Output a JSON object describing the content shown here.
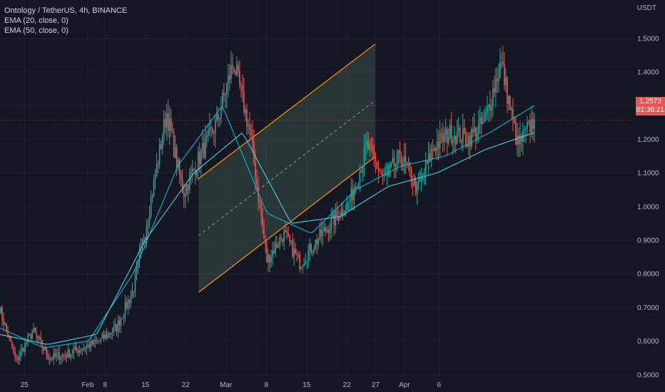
{
  "legend": {
    "symbol": "Ontology / TetherUS, 4h, BINANCE",
    "ema20": "EMA (20, close, 0)",
    "ema50": "EMA (50, close, 0)"
  },
  "colors": {
    "background": "#131722",
    "grid": "#1e222d",
    "up": "#26a69a",
    "down": "#ef5350",
    "ema20": "#00bcd4",
    "ema50": "#4dd0e1",
    "channel_line": "#ff9800",
    "channel_fill": "#a5d6a7",
    "price_line": "#ef5350"
  },
  "price_badge": {
    "price": "1.2573",
    "countdown": "01:36:21"
  },
  "chart_data": {
    "type": "candlestick",
    "title": "Ontology / TetherUS, 4h, BINANCE",
    "unit": "USDT",
    "yticks": [
      "1.5000",
      "1.4000",
      "1.3000",
      "1.2000",
      "1.1000",
      "1.0000",
      "0.9000",
      "0.8000",
      "0.7000",
      "0.6000",
      "0.5000"
    ],
    "ylim": [
      0.45,
      1.55
    ],
    "xticks": [
      "25",
      "Feb",
      "8",
      "15",
      "22",
      "Mar",
      "8",
      "15",
      "22",
      "27",
      "Apr",
      "6"
    ],
    "last_price": 1.2573,
    "grid": true,
    "series": [
      {
        "name": "EMA (20, close, 0)",
        "type": "line"
      },
      {
        "name": "EMA (50, close, 0)",
        "type": "line"
      }
    ],
    "anchors": [
      [
        0.7,
        0.62
      ],
      [
        0.54,
        0.58
      ],
      [
        0.63,
        0.62
      ],
      [
        0.55,
        0.58
      ],
      [
        0.56,
        0.57
      ],
      [
        0.58,
        0.58
      ],
      [
        0.6,
        0.61
      ],
      [
        0.64,
        0.64
      ],
      [
        0.75,
        0.73
      ],
      [
        1.0,
        1.02
      ],
      [
        1.28,
        1.32
      ],
      [
        1.04,
        1.08
      ],
      [
        1.15,
        1.2
      ],
      [
        1.25,
        1.28
      ],
      [
        1.43,
        1.48
      ],
      [
        1.22,
        1.26
      ],
      [
        0.84,
        0.92
      ],
      [
        0.92,
        0.94
      ],
      [
        0.83,
        0.82
      ],
      [
        0.9,
        0.92
      ],
      [
        0.96,
        0.96
      ],
      [
        1.02,
        1.05
      ],
      [
        1.18,
        1.21
      ],
      [
        1.08,
        1.12
      ],
      [
        1.15,
        1.16
      ],
      [
        1.05,
        1.03
      ],
      [
        1.18,
        1.2
      ],
      [
        1.22,
        1.24
      ],
      [
        1.2,
        1.21
      ],
      [
        1.25,
        1.27
      ],
      [
        1.43,
        1.45
      ],
      [
        1.18,
        1.16
      ],
      [
        1.26,
        1.257
      ]
    ],
    "ema20_anchors": [
      [
        0.64,
        0.62
      ],
      [
        0.58,
        0.6
      ],
      [
        0.6,
        0.64
      ],
      [
        0.8,
        1.0
      ],
      [
        1.12,
        1.15
      ],
      [
        1.3,
        1.1
      ],
      [
        0.98,
        0.88
      ],
      [
        0.92,
        0.98
      ],
      [
        1.05,
        1.1
      ],
      [
        1.12,
        1.08
      ],
      [
        1.15,
        1.2
      ],
      [
        1.22,
        1.18
      ],
      [
        1.3,
        1.22
      ]
    ],
    "ema50_anchors": [
      [
        0.62,
        0.6
      ],
      [
        0.59,
        0.6
      ],
      [
        0.62,
        0.7
      ],
      [
        0.9,
        1.05
      ],
      [
        1.1,
        1.18
      ],
      [
        1.22,
        1.02
      ],
      [
        0.95,
        0.94
      ],
      [
        0.97,
        1.02
      ],
      [
        1.06,
        1.08
      ],
      [
        1.1,
        1.15
      ],
      [
        1.17,
        1.2
      ],
      [
        1.22,
        1.24
      ]
    ],
    "channel": {
      "lower": [
        [
          "Feb 24",
          0.745
        ],
        [
          "Mar 27",
          1.148
        ]
      ],
      "upper": [
        [
          "Feb 24",
          1.083
        ],
        [
          "Mar 27",
          1.483
        ]
      ],
      "mid_dashed": [
        [
          "Feb 24",
          0.914
        ],
        [
          "Mar 27",
          1.315
        ]
      ]
    }
  }
}
